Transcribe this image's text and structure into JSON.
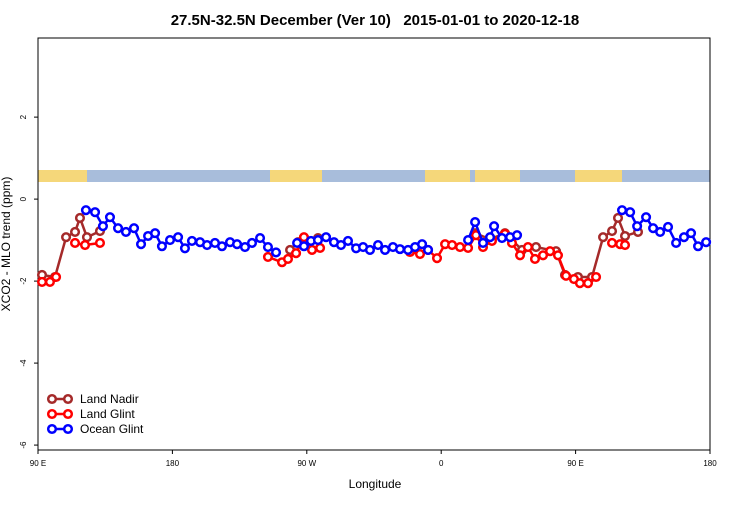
{
  "chart_data": {
    "type": "line",
    "title": "27.5N-32.5N December (Ver 10)   2015-01-01 to 2020-12-18",
    "x_label": "Longitude",
    "y_label": "XCO2 - MLO trend (ppm)",
    "xlim": [
      90,
      540
    ],
    "xticks": [
      {
        "value": 90,
        "label": "90 E"
      },
      180,
      {
        "value": 270,
        "label": "90 W"
      },
      {
        "value": 360,
        "label": "0"
      },
      {
        "value": 450,
        "label": "90 E"
      },
      {
        "value": 540,
        "label": "180"
      }
    ],
    "ylim": [
      -6.12,
      3.93
    ],
    "yticks": [
      -6,
      -4,
      -2,
      0,
      2
    ],
    "legend": "bottom-left",
    "series": [
      {
        "name": "Land Nadir",
        "color": "#a52a2a",
        "x": [
          92.7,
          101.4,
          108.8,
          114.8,
          118.1,
          122.8,
          131.5,
          null,
          258.8,
          264.1,
          277.5,
          null,
          382.7,
          392.7,
          402.7,
          414.1,
          423.5,
          436.9,
          442.9,
          451.6,
          461.0,
          468.4,
          474.4,
          478.4,
          483.1,
          491.8
        ],
        "values": [
          -1.85,
          -1.9,
          -0.93,
          -0.8,
          -0.46,
          -0.93,
          -0.78,
          null,
          -1.24,
          -1.05,
          -0.95,
          null,
          -0.83,
          -0.98,
          -0.83,
          -1.24,
          -1.17,
          -1.27,
          -1.85,
          -1.9,
          -1.9,
          -0.93,
          -0.78,
          -0.46,
          -0.9,
          -0.8
        ]
      },
      {
        "name": "Land Glint",
        "color": "#ff0000",
        "x": [
          92.7,
          98.0,
          102.1,
          null,
          114.8,
          121.5,
          131.5,
          null,
          244.0,
          253.4,
          257.4,
          262.8,
          268.1,
          273.5,
          278.9,
          null,
          339.1,
          345.8,
          351.2,
          357.2,
          362.6,
          367.3,
          372.6,
          378.0,
          383.3,
          388.0,
          394.0,
          402.7,
          407.4,
          412.8,
          418.1,
          422.8,
          428.2,
          432.9,
          438.2,
          443.6,
          448.9,
          452.9,
          458.3,
          463.7,
          null,
          474.4,
          479.8,
          483.1
        ],
        "values": [
          -2.02,
          -2.02,
          -1.9,
          null,
          -1.07,
          -1.12,
          -1.07,
          null,
          -1.41,
          -1.54,
          -1.46,
          -1.32,
          -0.93,
          -1.24,
          -1.19,
          null,
          -1.29,
          -1.34,
          -1.24,
          -1.44,
          -1.1,
          -1.12,
          -1.17,
          -1.19,
          -0.88,
          -1.17,
          -1.02,
          -0.85,
          -1.07,
          -1.37,
          -1.17,
          -1.46,
          -1.37,
          -1.27,
          -1.37,
          -1.87,
          -1.95,
          -2.05,
          -2.05,
          -1.9,
          null,
          -1.07,
          -1.1,
          -1.12
        ]
      },
      {
        "name": "Ocean Glint",
        "color": "#0000ff",
        "x": [
          122.1,
          128.2,
          133.5,
          138.2,
          143.6,
          148.9,
          154.3,
          159.0,
          163.7,
          168.4,
          173.0,
          178.4,
          183.8,
          188.4,
          193.1,
          198.5,
          203.2,
          208.5,
          213.2,
          218.6,
          223.3,
          228.6,
          233.3,
          238.7,
          244.0,
          249.4,
          null,
          263.5,
          268.1,
          272.8,
          277.5,
          282.9,
          288.2,
          292.9,
          297.6,
          303.0,
          307.7,
          312.3,
          317.7,
          322.4,
          327.7,
          332.4,
          337.8,
          342.5,
          347.2,
          351.2,
          null,
          378.0,
          382.7,
          388.0,
          392.7,
          395.4,
          400.7,
          406.1,
          410.8,
          null,
          481.1,
          486.5,
          491.2,
          497.2,
          501.9,
          506.6,
          511.9,
          517.3,
          522.6,
          527.3,
          532.0,
          537.4
        ],
        "values": [
          -0.27,
          -0.32,
          -0.66,
          -0.44,
          -0.71,
          -0.8,
          -0.71,
          -1.1,
          -0.9,
          -0.83,
          -1.15,
          -1.0,
          -0.93,
          -1.2,
          -1.02,
          -1.05,
          -1.12,
          -1.07,
          -1.15,
          -1.05,
          -1.1,
          -1.17,
          -1.07,
          -0.95,
          -1.17,
          -1.3,
          null,
          -1.07,
          -1.15,
          -1.02,
          -1.0,
          -0.93,
          -1.05,
          -1.12,
          -1.02,
          -1.2,
          -1.17,
          -1.24,
          -1.12,
          -1.24,
          -1.17,
          -1.22,
          -1.24,
          -1.17,
          -1.1,
          -1.24,
          null,
          -1.0,
          -0.56,
          -1.07,
          -0.93,
          -0.66,
          -0.95,
          -0.93,
          -0.88,
          null,
          -0.27,
          -0.32,
          -0.66,
          -0.44,
          -0.71,
          -0.8,
          -0.68,
          -1.07,
          -0.93,
          -0.83,
          -1.15,
          -1.05
        ]
      }
    ]
  }
}
